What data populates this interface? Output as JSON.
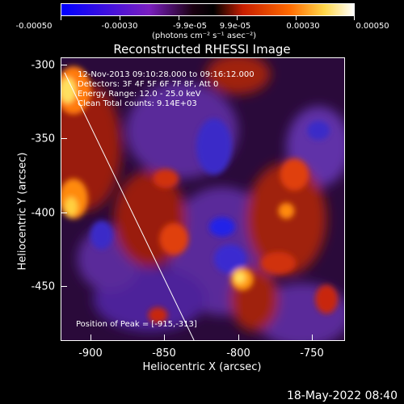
{
  "colorbar": {
    "ticks": [
      "-0.00050",
      "-0.00030",
      "-9.9e-05",
      "9.9e-05",
      "0.00030",
      "0.00050"
    ],
    "units": "(photons cm⁻² s⁻¹ asec⁻²)",
    "colors": [
      "#0000ff",
      "#7a1fbf",
      "#000000",
      "#c81e00",
      "#ff6a00",
      "#ffff99",
      "#ffffff"
    ]
  },
  "plot": {
    "title": "Reconstructed RHESSI Image",
    "xlabel": "Heliocentric X (arcsec)",
    "ylabel": "Heliocentric Y (arcsec)",
    "xticks": [
      "-900",
      "-850",
      "-800",
      "-750"
    ],
    "yticks": [
      "-300",
      "-350",
      "-400",
      "-450"
    ],
    "xlim": [
      -920,
      -727
    ],
    "ylim": [
      -487,
      -295
    ]
  },
  "info": {
    "time_range": "12-Nov-2013 09:10:28.000 to 09:16:12.000",
    "detectors": "Detectors: 3F 4F 5F 6F 7F 8F, Att 0",
    "energy": "Energy Range: 12.0 - 25.0 keV",
    "clean": "Clean    Total counts: 9.14E+03",
    "peak": "Position of Peak = [-915,-313]"
  },
  "timestamp": "18-May-2022 08:40"
}
